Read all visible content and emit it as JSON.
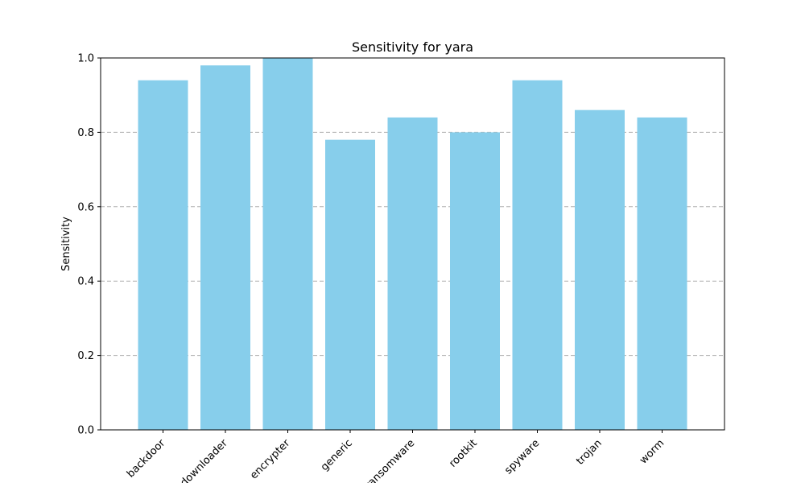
{
  "chart_data": {
    "type": "bar",
    "title": "Sensitivity for yara",
    "xlabel": "",
    "ylabel": "Sensitivity",
    "categories": [
      "backdoor",
      "downloader",
      "encrypter",
      "generic",
      "ransomware",
      "rootkit",
      "spyware",
      "trojan",
      "worm"
    ],
    "values": [
      0.94,
      0.98,
      1.0,
      0.78,
      0.84,
      0.8,
      0.94,
      0.86,
      0.84
    ],
    "ylim": [
      0,
      1.0
    ],
    "yticks": [
      "0.0",
      "0.2",
      "0.4",
      "0.6",
      "0.8",
      "1.0"
    ],
    "grid": "y-dashed",
    "bar_color": "#87ceeb",
    "grid_color": "#b0b0b0"
  }
}
